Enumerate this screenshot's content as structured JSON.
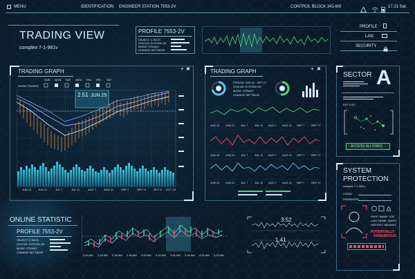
{
  "topbar": {
    "menu": "MENU",
    "identification": "IDENTIFICATION",
    "station": "ENGINEER STATION 7553-2V",
    "control": "CONTROL BLOCK 341-M3",
    "clock": "17.21 Sat."
  },
  "header": {
    "title": "TRADING VIEW",
    "subtitle": "complex 7-1-981v"
  },
  "profile_top": {
    "title": "PROFILE 7553-2V",
    "lines": [
      "OBJECT: C-94/23",
      "STATUS: SYSTEM OK",
      "MODE: STEADY",
      "CHANGE SETTINGS"
    ]
  },
  "nav": {
    "profile": "PROFILE",
    "lan": "LAN",
    "security": "SECURITY"
  },
  "trading_graph_main": {
    "title": "TRADING GRAPH",
    "show_trades": "SHOW TRADES",
    "days": [
      "SUN",
      "MON",
      "TUE",
      "WED",
      "THU",
      "FRI",
      "SAT"
    ],
    "tooltip_value": "2.51",
    "tooltip_date": "JUN 25",
    "x_ticks": [
      "JUN 12",
      "JUN 21",
      "JUL 7",
      "JUL 11",
      "AUG 7",
      "AUG 11",
      "SEP 7",
      "SEP 11",
      "OCT 5",
      "OCT 16"
    ]
  },
  "trading_graph_right": {
    "title": "TRADING GRAPH",
    "period": "PERIOD: JUN 12 - SEP 17",
    "status": "STATUS: SYSTEM OK",
    "mode": "MODE: STEADY",
    "change": "CHANGE SETTINGS",
    "x_ticks": [
      "JUN 12",
      "JUN 21",
      "JUL 7",
      "JUL 11",
      "AUG 7",
      "AUG 11",
      "SEP 7",
      "SEP 17"
    ]
  },
  "sector": {
    "title": "SECTOR",
    "letter": "A",
    "key_log": "KEY LOG",
    "access": "ACCESS ALLOWED"
  },
  "system_protection": {
    "title1": "SYSTEM",
    "title2": "PROTECTION",
    "sub": "complex 7-1-981v",
    "login": "LOGIN",
    "password": "PASSWORD",
    "fields": [
      "FIRST NAME: JOE",
      "LAST NAME: SMITH",
      "HISTORY: MISSING"
    ],
    "alert1": "POTENTIALLY",
    "alert2": "DANGEROUS"
  },
  "online_statistic": {
    "title": "ONLINE STATISTIC",
    "profile": "PROFILE 7553-2V",
    "lines": [
      "OBJECT: C-94/23",
      "STATUS: SYSTEM OK",
      "MODE: STEADY",
      "CHANGE SETTINGS"
    ]
  },
  "bottom_chart": {
    "x_ticks": [
      "2.00 AM",
      "2.15 AM",
      "2.30 AM",
      "2.45 AM",
      "3.00 AM",
      "3.15 AM",
      "3.30 AM",
      "3.45 AM",
      "4.00 AM",
      "4.15 AM"
    ]
  },
  "waves": {
    "value1": "3.52",
    "value2": "1.41"
  },
  "colors": {
    "bg": "#0b1a28",
    "accent": "#5ec8e8",
    "green": "#4fd67a",
    "red": "#ff3d55",
    "orange": "#e08a3a"
  }
}
